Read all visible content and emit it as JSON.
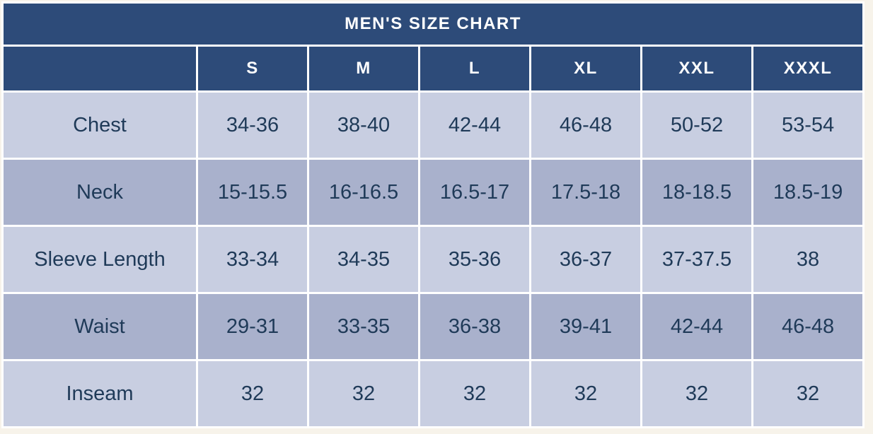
{
  "chart_data": {
    "type": "table",
    "title": "MEN'S SIZE CHART",
    "size_columns": [
      "S",
      "M",
      "L",
      "XL",
      "XXL",
      "XXXL"
    ],
    "measurement_rows": [
      {
        "label": "Chest",
        "values": [
          "34-36",
          "38-40",
          "42-44",
          "46-48",
          "50-52",
          "53-54"
        ]
      },
      {
        "label": "Neck",
        "values": [
          "15-15.5",
          "16-16.5",
          "16.5-17",
          "17.5-18",
          "18-18.5",
          "18.5-19"
        ]
      },
      {
        "label": "Sleeve Length",
        "values": [
          "33-34",
          "34-35",
          "35-36",
          "36-37",
          "37-37.5",
          "38"
        ]
      },
      {
        "label": "Waist",
        "values": [
          "29-31",
          "33-35",
          "36-38",
          "39-41",
          "42-44",
          "46-48"
        ]
      },
      {
        "label": "Inseam",
        "values": [
          "32",
          "32",
          "32",
          "32",
          "32",
          "32"
        ]
      }
    ]
  },
  "colors": {
    "header_bg": "#2d4b79",
    "header_text": "#ffffff",
    "row_light": "#c8cee1",
    "row_dark": "#a9b1cc",
    "text": "#1f3a58",
    "gap": "#ffffff",
    "page_bg": "#f7f3ea"
  }
}
